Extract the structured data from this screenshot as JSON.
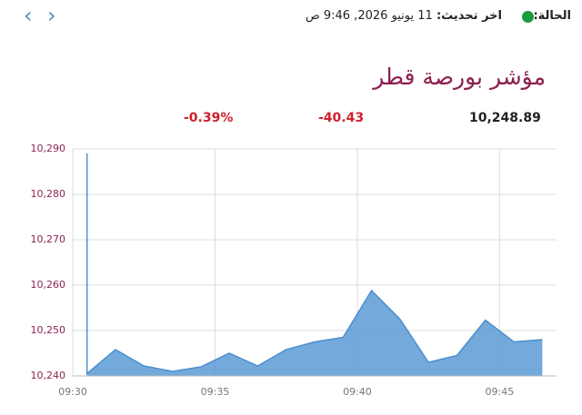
{
  "header": {
    "status_label": "الحالة:",
    "updated_label": "اخر تحديث:",
    "updated_value": "11 يونيو 2026, 9:46 ص"
  },
  "title": "مؤشر بورصة قطر",
  "quote": {
    "value": "10,248.89",
    "change": "-40.43",
    "change_percent": "-0.39%"
  },
  "chart_data": {
    "type": "area",
    "color": "#5b9bd5",
    "line_color": "#4a8fd1",
    "x": [
      570.5,
      570.5,
      571.5,
      572.5,
      573.5,
      574.5,
      575.5,
      576.5,
      577.5,
      578.5,
      579.5,
      580.5,
      581.5,
      582.5,
      583.5,
      584.5,
      585.5,
      586.5
    ],
    "values": [
      10289,
      10240.5,
      10245.8,
      10242.2,
      10241,
      10242,
      10245,
      10242.2,
      10245.8,
      10247.5,
      10248.5,
      10258.8,
      10252.5,
      10243,
      10244.5,
      10252.3,
      10247.5,
      10248
    ],
    "xlim": [
      570,
      587
    ],
    "xticks": [
      {
        "value": 570,
        "label": "09:30"
      },
      {
        "value": 575,
        "label": "09:35"
      },
      {
        "value": 580,
        "label": "09:40"
      },
      {
        "value": 585,
        "label": "09:45"
      }
    ],
    "ylim": [
      10240,
      10290
    ],
    "yticks": [
      {
        "value": 10240,
        "label": "10,240"
      },
      {
        "value": 10250,
        "label": "10,250"
      },
      {
        "value": 10260,
        "label": "10,260"
      },
      {
        "value": 10270,
        "label": "10,270"
      },
      {
        "value": 10280,
        "label": "10,280"
      },
      {
        "value": 10290,
        "label": "10,290"
      }
    ],
    "grid": true
  }
}
